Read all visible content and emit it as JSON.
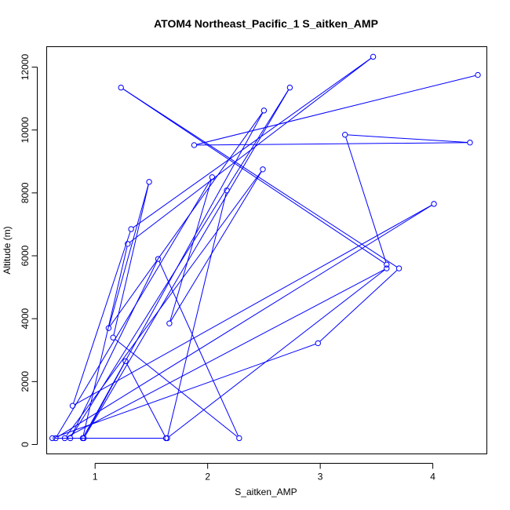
{
  "chart_data": {
    "type": "line",
    "title": "ATOM4 Northeast_Pacific_1 S_aitken_AMP",
    "xlabel": "S_aitken_AMP",
    "ylabel": "Altitude (m)",
    "xlim": [
      0.57,
      4.48
    ],
    "ylim": [
      -300,
      12650
    ],
    "xticks": [
      1,
      2,
      3,
      4
    ],
    "yticks": [
      0,
      2000,
      4000,
      6000,
      8000,
      10000,
      12000
    ],
    "xtick_labels": [
      "1",
      "2",
      "3",
      "4"
    ],
    "ytick_labels": [
      "0",
      "2000",
      "4000",
      "6000",
      "8000",
      "10000",
      "12000"
    ],
    "grid": false,
    "series": [
      {
        "color": "#0000ff",
        "marker": "open-circle",
        "x": [
          4.4,
          1.88,
          4.33,
          3.22,
          3.59,
          1.23,
          3.7,
          2.98,
          0.62,
          1.63,
          1.27,
          0.9,
          2.73,
          0.78,
          1.56,
          2.28,
          1.16,
          1.48,
          1.12,
          2.5,
          0.89,
          1.29,
          3.47,
          1.32,
          0.8,
          4.01,
          0.65,
          2.04,
          1.66,
          2.49,
          0.73,
          3.59,
          1.64,
          2.17
        ],
        "y": [
          11750,
          9520,
          9600,
          9850,
          5720,
          11350,
          5600,
          3220,
          200,
          200,
          2650,
          200,
          11350,
          200,
          5900,
          200,
          3400,
          8350,
          3700,
          10620,
          200,
          6380,
          12330,
          6850,
          1230,
          7650,
          200,
          8500,
          3850,
          8750,
          200,
          5600,
          200,
          8080
        ]
      }
    ]
  }
}
